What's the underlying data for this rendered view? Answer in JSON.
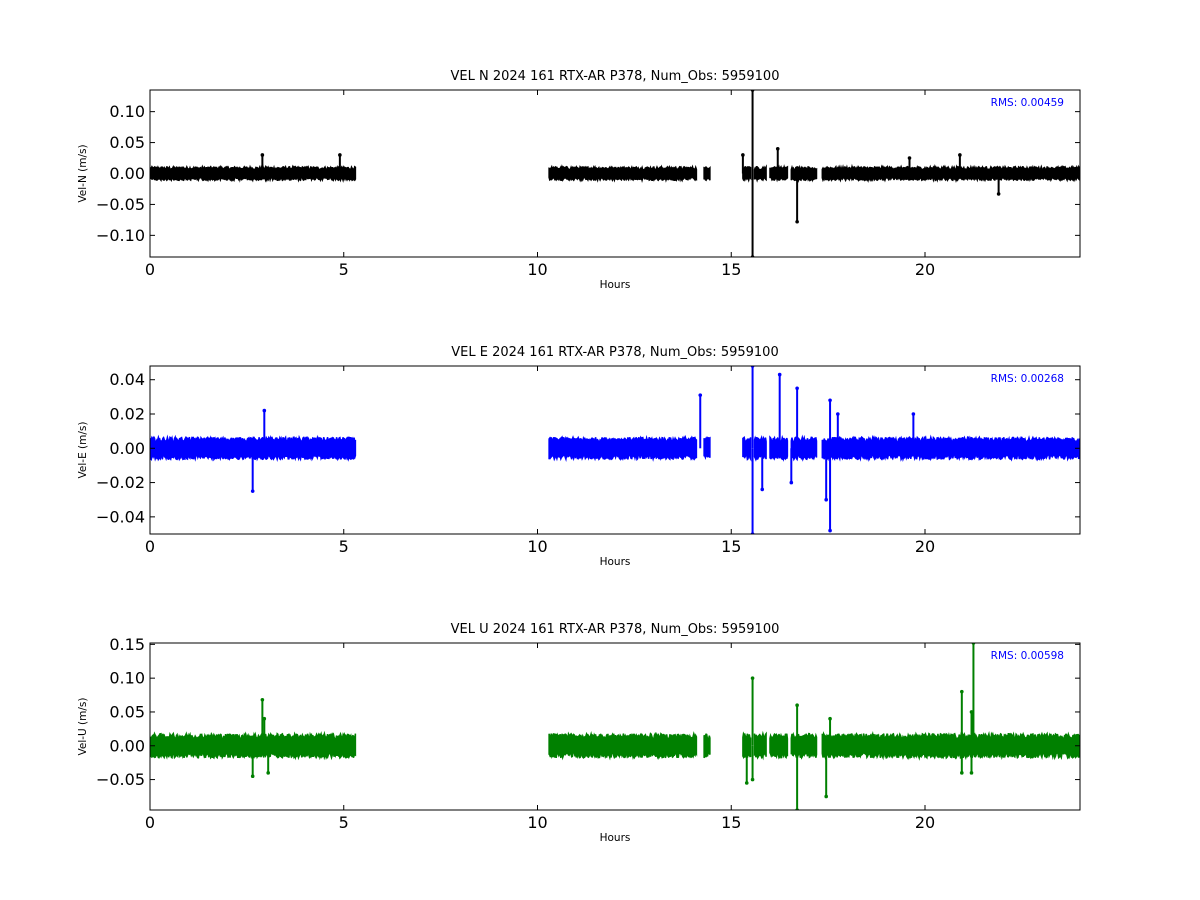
{
  "chart_data": [
    {
      "type": "line",
      "title": "VEL N 2024 161 RTX-AR  P378, Num_Obs: 5959100",
      "xlabel": "Hours",
      "ylabel": "Vel-N (m/s)",
      "xlim": [
        0,
        24
      ],
      "ylim": [
        -0.135,
        0.135
      ],
      "xticks": [
        0,
        5,
        10,
        15,
        20
      ],
      "xtick_labels": [
        "0",
        "5",
        "10",
        "15",
        "20"
      ],
      "yticks": [
        -0.1,
        -0.05,
        0.0,
        0.05,
        0.1
      ],
      "ytick_labels": [
        "−0.10",
        "−0.05",
        "0.00",
        "0.05",
        "0.10"
      ],
      "annotation": "RMS:  0.00459",
      "grid": false,
      "series": [
        {
          "color": "#000000",
          "noise_amplitude": 0.011,
          "segments": [
            [
              0.0,
              5.3
            ],
            [
              10.3,
              14.1
            ],
            [
              14.3,
              14.45
            ],
            [
              15.3,
              15.5
            ],
            [
              15.6,
              15.9
            ],
            [
              16.0,
              16.45
            ],
            [
              16.55,
              17.2
            ],
            [
              17.35,
              24.0
            ]
          ],
          "spikes": [
            [
              15.55,
              0.135
            ],
            [
              15.55,
              -0.135
            ],
            [
              16.2,
              0.04
            ],
            [
              16.7,
              -0.078
            ],
            [
              15.3,
              0.03
            ],
            [
              2.9,
              0.03
            ],
            [
              4.9,
              0.03
            ],
            [
              20.9,
              0.03
            ],
            [
              19.6,
              0.025
            ],
            [
              21.9,
              -0.033
            ]
          ]
        }
      ]
    },
    {
      "type": "line",
      "title": "VEL E 2024 161 RTX-AR  P378, Num_Obs: 5959100",
      "xlabel": "Hours",
      "ylabel": "Vel-E (m/s)",
      "xlim": [
        0,
        24
      ],
      "ylim": [
        -0.05,
        0.048
      ],
      "xticks": [
        0,
        5,
        10,
        15,
        20
      ],
      "xtick_labels": [
        "0",
        "5",
        "10",
        "15",
        "20"
      ],
      "yticks": [
        -0.04,
        -0.02,
        0.0,
        0.02,
        0.04
      ],
      "ytick_labels": [
        "−0.04",
        "−0.02",
        "0.00",
        "0.02",
        "0.04"
      ],
      "annotation": "RMS:  0.00268",
      "grid": false,
      "series": [
        {
          "color": "#0000ff",
          "noise_amplitude": 0.0065,
          "segments": [
            [
              0.0,
              5.3
            ],
            [
              10.3,
              14.1
            ],
            [
              14.3,
              14.45
            ],
            [
              15.3,
              15.5
            ],
            [
              15.6,
              15.9
            ],
            [
              16.0,
              16.45
            ],
            [
              16.55,
              17.2
            ],
            [
              17.35,
              24.0
            ]
          ],
          "spikes": [
            [
              15.55,
              0.048
            ],
            [
              15.55,
              -0.05
            ],
            [
              16.25,
              0.043
            ],
            [
              16.7,
              0.035
            ],
            [
              14.2,
              0.031
            ],
            [
              17.55,
              0.028
            ],
            [
              17.75,
              0.02
            ],
            [
              17.55,
              -0.048
            ],
            [
              17.45,
              -0.03
            ],
            [
              16.55,
              -0.02
            ],
            [
              15.8,
              -0.024
            ],
            [
              2.65,
              -0.025
            ],
            [
              2.95,
              0.022
            ],
            [
              19.7,
              0.02
            ]
          ]
        }
      ]
    },
    {
      "type": "line",
      "title": "VEL U 2024 161 RTX-AR  P378, Num_Obs: 5959100",
      "xlabel": "Hours",
      "ylabel": "Vel-U (m/s)",
      "xlim": [
        0,
        24
      ],
      "ylim": [
        -0.095,
        0.152
      ],
      "xticks": [
        0,
        5,
        10,
        15,
        20
      ],
      "xtick_labels": [
        "0",
        "5",
        "10",
        "15",
        "20"
      ],
      "yticks": [
        -0.05,
        0.0,
        0.05,
        0.1,
        0.15
      ],
      "ytick_labels": [
        "−0.05",
        "0.00",
        "0.05",
        "0.10",
        "0.15"
      ],
      "annotation": "RMS:  0.00598",
      "grid": false,
      "series": [
        {
          "color": "#008000",
          "noise_amplitude": 0.018,
          "segments": [
            [
              0.0,
              5.3
            ],
            [
              10.3,
              14.1
            ],
            [
              14.3,
              14.45
            ],
            [
              15.3,
              15.5
            ],
            [
              15.6,
              15.9
            ],
            [
              16.0,
              16.45
            ],
            [
              16.55,
              17.2
            ],
            [
              17.35,
              24.0
            ]
          ],
          "spikes": [
            [
              15.55,
              0.1
            ],
            [
              15.55,
              -0.05
            ],
            [
              16.7,
              -0.095
            ],
            [
              16.7,
              0.06
            ],
            [
              21.25,
              0.152
            ],
            [
              20.95,
              0.08
            ],
            [
              21.2,
              0.05
            ],
            [
              20.95,
              -0.04
            ],
            [
              21.2,
              -0.04
            ],
            [
              17.45,
              -0.075
            ],
            [
              17.55,
              0.04
            ],
            [
              2.9,
              0.068
            ],
            [
              2.95,
              0.04
            ],
            [
              2.65,
              -0.045
            ],
            [
              3.05,
              -0.04
            ],
            [
              15.4,
              -0.055
            ]
          ]
        }
      ]
    }
  ]
}
